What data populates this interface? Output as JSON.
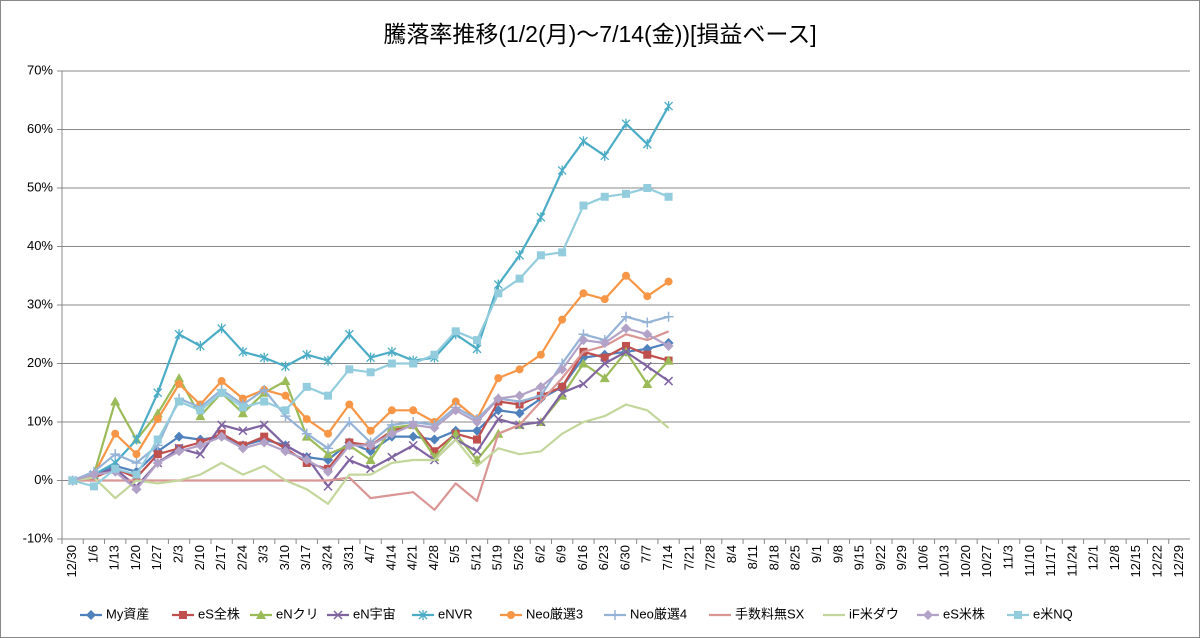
{
  "chart_data": {
    "type": "line",
    "title": "騰落率推移(1/2(月)～7/14(金))[損益ベース]",
    "categories": [
      "12/30",
      "1/6",
      "1/13",
      "1/20",
      "1/27",
      "2/3",
      "2/10",
      "2/17",
      "2/24",
      "3/3",
      "3/10",
      "3/17",
      "3/24",
      "3/31",
      "4/7",
      "4/14",
      "4/21",
      "4/28",
      "5/5",
      "5/12",
      "5/19",
      "5/26",
      "6/2",
      "6/9",
      "6/16",
      "6/23",
      "6/30",
      "7/7",
      "7/14",
      "7/21",
      "7/28",
      "8/4",
      "8/11",
      "8/18",
      "8/25",
      "9/1",
      "9/8",
      "9/15",
      "9/22",
      "9/29",
      "10/6",
      "10/13",
      "10/20",
      "10/27",
      "11/3",
      "11/10",
      "11/17",
      "11/24",
      "12/1",
      "12/8",
      "12/15",
      "12/22",
      "12/29"
    ],
    "ylim": [
      -10,
      70
    ],
    "yticks": [
      {
        "value": -10,
        "label": "-10%"
      },
      {
        "value": 0,
        "label": "0%"
      },
      {
        "value": 10,
        "label": "10%"
      },
      {
        "value": 20,
        "label": "20%"
      },
      {
        "value": 30,
        "label": "30%"
      },
      {
        "value": 40,
        "label": "40%"
      },
      {
        "value": 50,
        "label": "50%"
      },
      {
        "value": 60,
        "label": "60%"
      },
      {
        "value": 70,
        "label": "70%"
      }
    ],
    "grid": true,
    "legend": "bottom",
    "series": [
      {
        "name": "My資産",
        "color": "#4F81BD",
        "marker": "diamond",
        "values": [
          0,
          1,
          2.5,
          1.5,
          5,
          7.5,
          7,
          7.5,
          6,
          7,
          6,
          4,
          3.5,
          6.5,
          5,
          7.5,
          7.5,
          7,
          8.5,
          8.5,
          12,
          11.5,
          14,
          16,
          21,
          21.5,
          22,
          22.5,
          23.5,
          null,
          null,
          null,
          null,
          null,
          null,
          null,
          null,
          null,
          null,
          null,
          null,
          null,
          null,
          null,
          null,
          null,
          null,
          null,
          null,
          null,
          null,
          null,
          null
        ]
      },
      {
        "name": "eS全株",
        "color": "#C0504D",
        "marker": "square",
        "values": [
          0,
          0.5,
          2,
          0.5,
          4.5,
          5.5,
          6.5,
          8,
          6,
          7.5,
          5.5,
          3,
          2,
          6.5,
          6,
          8.5,
          9.5,
          5,
          8,
          7,
          13.5,
          13,
          14.5,
          16,
          22,
          21,
          23,
          21.5,
          20.5,
          null,
          null,
          null,
          null,
          null,
          null,
          null,
          null,
          null,
          null,
          null,
          null,
          null,
          null,
          null,
          null,
          null,
          null,
          null,
          null,
          null,
          null,
          null,
          null
        ]
      },
      {
        "name": "eNクリ",
        "color": "#9BBB59",
        "marker": "triangle",
        "values": [
          0,
          1,
          13.5,
          7,
          11.5,
          17.5,
          11,
          15,
          11.5,
          15,
          17,
          7.5,
          4.5,
          6,
          3.5,
          9,
          9.5,
          4,
          8,
          3.5,
          8,
          9.5,
          10,
          14.5,
          20,
          17.5,
          22,
          16.5,
          20.5,
          null,
          null,
          null,
          null,
          null,
          null,
          null,
          null,
          null,
          null,
          null,
          null,
          null,
          null,
          null,
          null,
          null,
          null,
          null,
          null,
          null,
          null,
          null,
          null
        ]
      },
      {
        "name": "eN宇宙",
        "color": "#8064A2",
        "marker": "x",
        "values": [
          0,
          1,
          2,
          -1,
          3,
          5.5,
          4.5,
          9.5,
          8.5,
          9.5,
          6,
          4,
          -1,
          3.5,
          2,
          4,
          6,
          3.5,
          7,
          5,
          10.5,
          9.5,
          10,
          15,
          16.5,
          20,
          22,
          19.5,
          17,
          null,
          null,
          null,
          null,
          null,
          null,
          null,
          null,
          null,
          null,
          null,
          null,
          null,
          null,
          null,
          null,
          null,
          null,
          null,
          null,
          null,
          null,
          null,
          null
        ]
      },
      {
        "name": "eNVR",
        "color": "#4BACC6",
        "marker": "star",
        "values": [
          0,
          1,
          3,
          7,
          15,
          25,
          23,
          26,
          22,
          21,
          19.5,
          21.5,
          20.5,
          25,
          21,
          22,
          20.5,
          21,
          25,
          22.5,
          33.5,
          38.5,
          45,
          53,
          58,
          55.5,
          61,
          57.5,
          64,
          null,
          null,
          null,
          null,
          null,
          null,
          null,
          null,
          null,
          null,
          null,
          null,
          null,
          null,
          null,
          null,
          null,
          null,
          null,
          null,
          null,
          null,
          null,
          null
        ]
      },
      {
        "name": "Neo厳選3",
        "color": "#F79646",
        "marker": "circle",
        "values": [
          0,
          1,
          8,
          4.5,
          10.5,
          16.5,
          13,
          17,
          14,
          15.5,
          14.5,
          10.5,
          8,
          13,
          8.5,
          12,
          12,
          10,
          13.5,
          10.5,
          17.5,
          19,
          21.5,
          27.5,
          32,
          31,
          35,
          31.5,
          34,
          null,
          null,
          null,
          null,
          null,
          null,
          null,
          null,
          null,
          null,
          null,
          null,
          null,
          null,
          null,
          null,
          null,
          null,
          null,
          null,
          null,
          null,
          null,
          null
        ]
      },
      {
        "name": "Neo厳選4",
        "color": "#95B3D7",
        "marker": "plus",
        "values": [
          0,
          1.5,
          4.5,
          3,
          6,
          14,
          12.5,
          15.5,
          13,
          15.5,
          11,
          8,
          5.5,
          10,
          6.5,
          9.5,
          10,
          9.5,
          12.5,
          10.5,
          14,
          13.5,
          14.5,
          20,
          25,
          24,
          28,
          27,
          28,
          null,
          null,
          null,
          null,
          null,
          null,
          null,
          null,
          null,
          null,
          null,
          null,
          null,
          null,
          null,
          null,
          null,
          null,
          null,
          null,
          null,
          null,
          null,
          null
        ]
      },
      {
        "name": "手数料無SX",
        "color": "#D99694",
        "marker": "none",
        "values": [
          0,
          0,
          0,
          0,
          0,
          0,
          0,
          0,
          0,
          0,
          0,
          0,
          0,
          0.5,
          -3,
          -2.5,
          -2,
          -5,
          -0.5,
          -3.5,
          8,
          9.5,
          13.5,
          17.5,
          22,
          23,
          25,
          24,
          25.5,
          null,
          null,
          null,
          null,
          null,
          null,
          null,
          null,
          null,
          null,
          null,
          null,
          null,
          null,
          null,
          null,
          null,
          null,
          null,
          null,
          null,
          null,
          null,
          null
        ]
      },
      {
        "name": "iF米ダウ",
        "color": "#C3D69B",
        "marker": "none",
        "values": [
          0,
          0.5,
          -3,
          0,
          -0.5,
          0,
          1,
          3,
          1,
          2.5,
          0,
          -1.5,
          -4,
          1,
          1,
          3,
          3.5,
          3.5,
          7,
          2.5,
          5.5,
          4.5,
          5,
          8,
          10,
          11,
          13,
          12,
          9,
          null,
          null,
          null,
          null,
          null,
          null,
          null,
          null,
          null,
          null,
          null,
          null,
          null,
          null,
          null,
          null,
          null,
          null,
          null,
          null,
          null,
          null,
          null,
          null
        ]
      },
      {
        "name": "eS米株",
        "color": "#B3A2C7",
        "marker": "diamond",
        "values": [
          0,
          1,
          1.5,
          -1.5,
          3,
          5,
          6,
          7.5,
          5.5,
          6.5,
          5,
          3.5,
          1.5,
          6,
          6,
          8,
          9.5,
          9,
          12,
          10,
          14,
          14.5,
          16,
          19,
          24,
          23.5,
          26,
          25,
          23,
          null,
          null,
          null,
          null,
          null,
          null,
          null,
          null,
          null,
          null,
          null,
          null,
          null,
          null,
          null,
          null,
          null,
          null,
          null,
          null,
          null,
          null,
          null,
          null
        ]
      },
      {
        "name": "e米NQ",
        "color": "#93CDDD",
        "marker": "square",
        "values": [
          0,
          -1,
          2,
          1,
          7,
          13.5,
          12,
          15,
          12.5,
          13.5,
          12,
          16,
          14.5,
          19,
          18.5,
          20,
          20,
          21.5,
          25.5,
          24,
          32,
          34.5,
          38.5,
          39,
          47,
          48.5,
          49,
          50,
          48.5,
          null,
          null,
          null,
          null,
          null,
          null,
          null,
          null,
          null,
          null,
          null,
          null,
          null,
          null,
          null,
          null,
          null,
          null,
          null,
          null,
          null,
          null,
          null,
          null
        ]
      }
    ]
  }
}
